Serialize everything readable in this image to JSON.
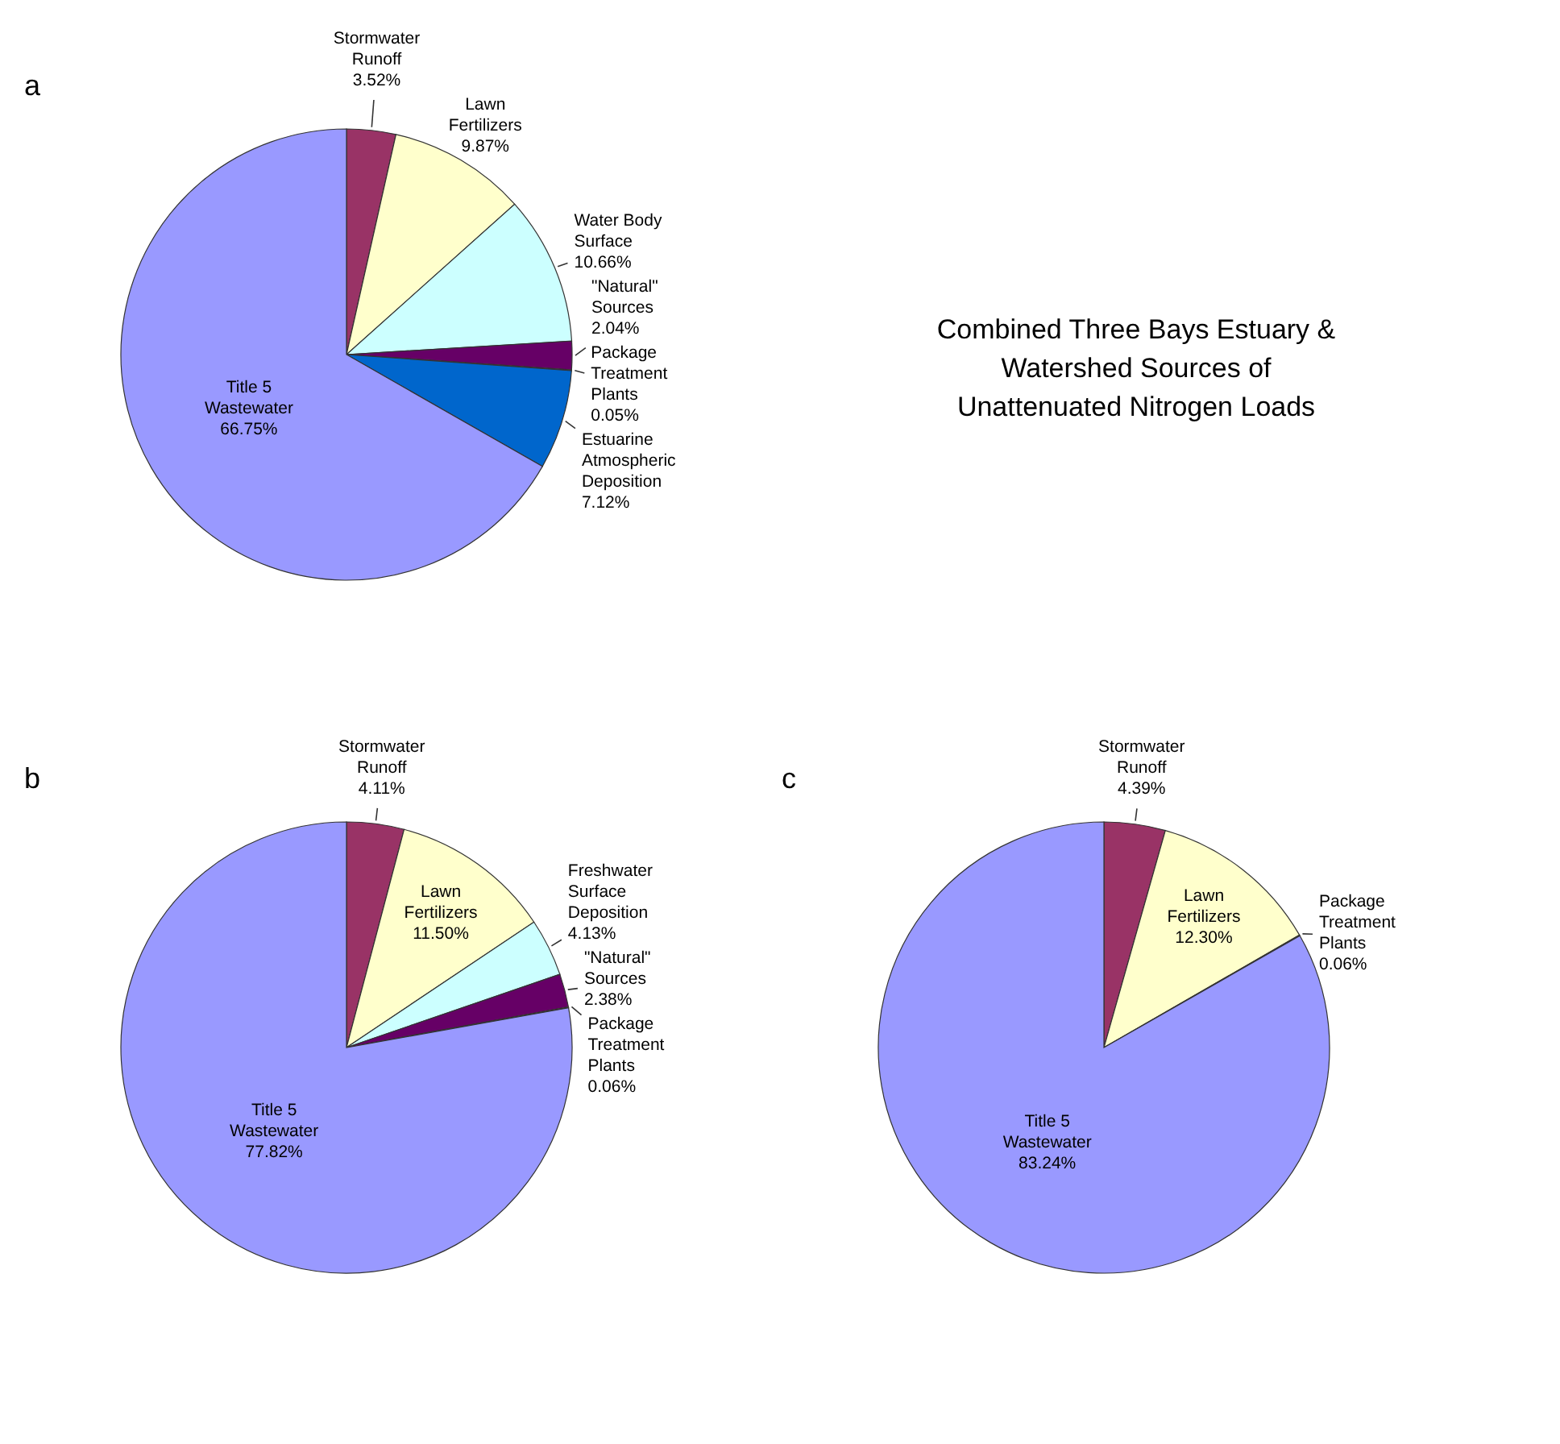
{
  "chart_data": [
    {
      "type": "pie",
      "annotations": [
        "a"
      ],
      "categories": [
        "Stormwater Runoff",
        "Lawn Fertilizers",
        "Water Body Surface",
        "\"Natural\" Sources",
        "Package Treatment Plants",
        "Estuarine Atmospheric Deposition",
        "Title 5 Wastewater"
      ],
      "values": [
        3.52,
        9.87,
        10.66,
        2.04,
        0.05,
        7.12,
        66.75
      ],
      "value_labels": [
        "3.52%",
        "9.87%",
        "10.66%",
        "2.04%",
        "0.05%",
        "7.12%",
        "66.75%"
      ],
      "colors": [
        "#993366",
        "#ffffcc",
        "#ccffff",
        "#660066",
        "#ff8080",
        "#0066cc",
        "#9999ff"
      ]
    },
    {
      "type": "other",
      "title": "Combined Three Bays Estuary & Watershed Sources of Unattenuated Nitrogen Loads"
    },
    {
      "type": "pie",
      "annotations": [
        "b"
      ],
      "categories": [
        "Stormwater Runoff",
        "Lawn Fertilizers",
        "Freshwater Surface Deposition",
        "\"Natural\" Sources",
        "Package Treatment Plants",
        "Title 5 Wastewater"
      ],
      "values": [
        4.11,
        11.5,
        4.13,
        2.38,
        0.06,
        77.82
      ],
      "value_labels": [
        "4.11%",
        "11.50%",
        "4.13%",
        "2.38%",
        "0.06%",
        "77.82%"
      ],
      "colors": [
        "#993366",
        "#ffffcc",
        "#ccffff",
        "#660066",
        "#ff8080",
        "#9999ff"
      ]
    },
    {
      "type": "pie",
      "annotations": [
        "c"
      ],
      "categories": [
        "Stormwater Runoff",
        "Lawn Fertilizers",
        "Package Treatment Plants",
        "Title 5 Wastewater"
      ],
      "values": [
        4.39,
        12.3,
        0.06,
        83.24
      ],
      "value_labels": [
        "4.39%",
        "12.30%",
        "0.06%",
        "83.24%"
      ],
      "colors": [
        "#993366",
        "#ffffcc",
        "#ff8080",
        "#9999ff"
      ]
    }
  ]
}
